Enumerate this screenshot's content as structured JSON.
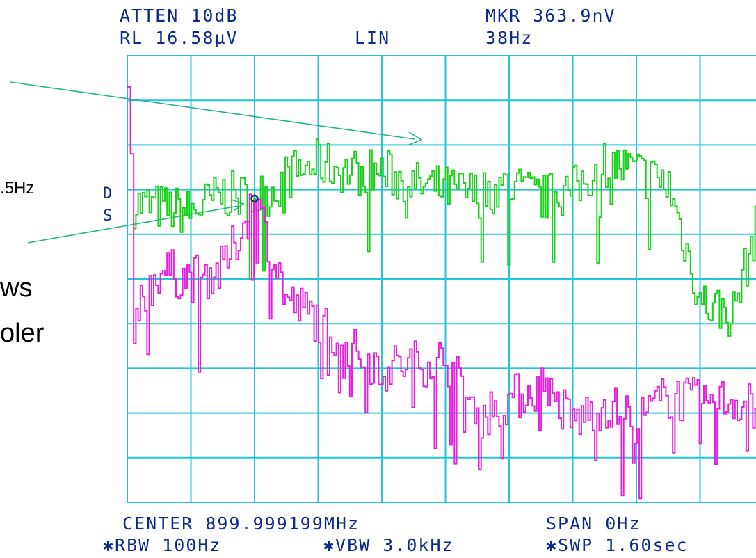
{
  "header": {
    "atten": "ATTEN 10dB",
    "ref_level": "RL 16.58µV",
    "scale": "LIN",
    "marker_amp": "MKR 363.9nV",
    "marker_freq": "38Hz"
  },
  "footer": {
    "center": "CENTER 899.999199MHz",
    "span": "SPAN 0Hz",
    "rbw": "✱RBW 100Hz",
    "vbw": "✱VBW 3.0kHz",
    "sweep": "✱SWP 1.60sec"
  },
  "trace_labels": {
    "d": "D",
    "s": "S"
  },
  "side_text": {
    "freq_fragment": ".5Hz",
    "line1": "ws",
    "line2": "oler"
  },
  "colors": {
    "grid": "#22c6d6",
    "trace_d": "#19d119",
    "trace_s": "#e81ee0",
    "annotation_arrow": "#23b38c",
    "text": "#0b2a8c",
    "marker": "#10357a"
  },
  "chart_data": {
    "type": "line",
    "title": "",
    "xlabel": "",
    "ylabel": "",
    "grid": true,
    "x_divisions": 10,
    "y_divisions": 10,
    "x": [
      0.0,
      0.5,
      1.0,
      1.5,
      2.0,
      2.3,
      2.5,
      3.0,
      3.5,
      4.0,
      4.5,
      5.0,
      5.5,
      6.0,
      6.5,
      7.0,
      7.5,
      8.0,
      8.5,
      9.0,
      9.5,
      10.0
    ],
    "ylim_div": [
      0,
      10
    ],
    "series": [
      {
        "name": "D",
        "values": [
          6.7,
          6.6,
          6.5,
          6.9,
          6.8,
          7.0,
          7.3,
          7.6,
          7.4,
          7.4,
          7.1,
          7.0,
          6.9,
          7.1,
          6.8,
          7.0,
          7.6,
          7.4,
          7.1,
          4.5,
          4.2,
          6.8
        ]
      },
      {
        "name": "S",
        "values": [
          3.8,
          5.2,
          5.0,
          5.2,
          6.8,
          5.5,
          4.5,
          4.1,
          3.4,
          3.0,
          3.1,
          3.2,
          1.9,
          2.3,
          2.6,
          1.8,
          2.2,
          1.8,
          2.4,
          2.2,
          2.3,
          2.1
        ]
      }
    ],
    "marker": {
      "series": "D",
      "x": 2.0,
      "y": 6.8
    },
    "spike": {
      "series": "S",
      "x": 0.0,
      "y": 9.3
    }
  }
}
